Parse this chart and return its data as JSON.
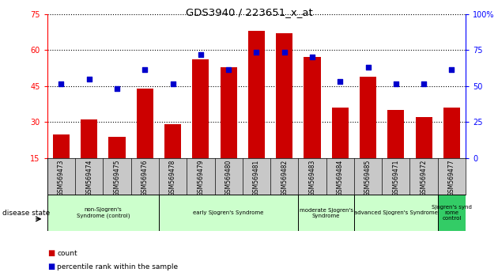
{
  "title": "GDS3940 / 223651_x_at",
  "samples": [
    "GSM569473",
    "GSM569474",
    "GSM569475",
    "GSM569476",
    "GSM569478",
    "GSM569479",
    "GSM569480",
    "GSM569481",
    "GSM569482",
    "GSM569483",
    "GSM569484",
    "GSM569485",
    "GSM569471",
    "GSM569472",
    "GSM569477"
  ],
  "counts": [
    25,
    31,
    24,
    44,
    29,
    56,
    53,
    68,
    67,
    57,
    36,
    49,
    35,
    32,
    36
  ],
  "percentiles_left": [
    46,
    48,
    44,
    52,
    46,
    58,
    52,
    59,
    59,
    57,
    47,
    53,
    46,
    46,
    52
  ],
  "ylim_left": [
    15,
    75
  ],
  "ylim_right": [
    0,
    100
  ],
  "yticks_left": [
    15,
    30,
    45,
    60,
    75
  ],
  "yticks_right": [
    0,
    25,
    50,
    75,
    100
  ],
  "bar_color": "#cc0000",
  "dot_color": "#0000cc",
  "groups": [
    {
      "label": "non-Sjogren's\nSyndrome (control)",
      "start": 0,
      "end": 4
    },
    {
      "label": "early Sjogren's Syndrome",
      "start": 4,
      "end": 9
    },
    {
      "label": "moderate Sjogren's\nSyndrome",
      "start": 9,
      "end": 11
    },
    {
      "label": "advanced Sjogren's Syndrome",
      "start": 11,
      "end": 14
    },
    {
      "label": "Sjogren's synd\nrome\ncontrol",
      "start": 14,
      "end": 15
    }
  ],
  "group_colors": [
    "#ccffcc",
    "#ccffcc",
    "#ccffcc",
    "#ccffcc",
    "#33cc66"
  ],
  "tick_area_color": "#c8c8c8"
}
